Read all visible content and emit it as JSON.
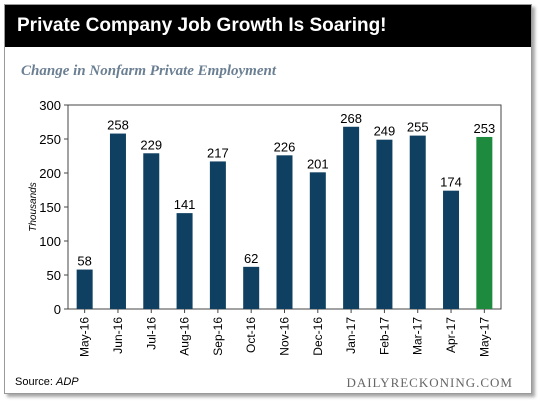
{
  "header": {
    "title": "Private Company Job Growth Is Soaring!"
  },
  "footer": {
    "source_label": "Source:",
    "source_name": "ADP",
    "watermark": "DAILYRECKONING.COM"
  },
  "colors": {
    "bar": "#0f4061",
    "highlight_bar": "#1d8a3d",
    "header_bg": "#000000",
    "subtitle": "#6b7f93"
  },
  "chart_data": {
    "type": "bar",
    "title": "Change in Nonfarm Private Employment",
    "xlabel": "",
    "ylabel": "Thousands",
    "ylim": [
      0,
      300
    ],
    "yticks": [
      0,
      50,
      100,
      150,
      200,
      250,
      300
    ],
    "categories": [
      "May-16",
      "Jun-16",
      "Jul-16",
      "Aug-16",
      "Sep-16",
      "Oct-16",
      "Nov-16",
      "Dec-16",
      "Jan-17",
      "Feb-17",
      "Mar-17",
      "Apr-17",
      "May-17"
    ],
    "values": [
      58,
      258,
      229,
      141,
      217,
      62,
      226,
      201,
      268,
      249,
      255,
      174,
      253
    ],
    "highlight_index": 12,
    "grid": false
  }
}
